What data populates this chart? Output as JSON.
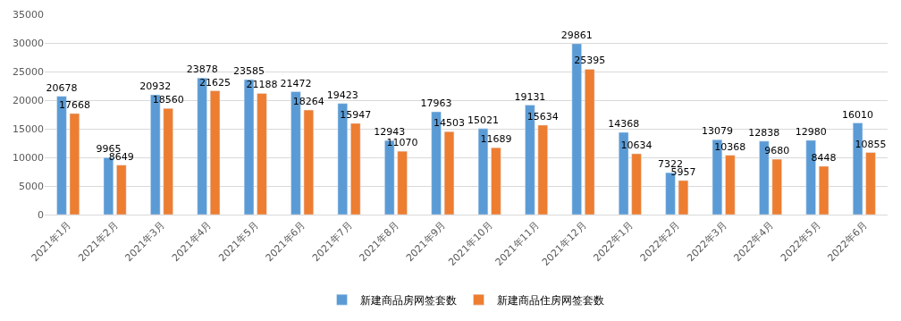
{
  "chart_data": {
    "type": "bar",
    "categories": [
      "2021年1月",
      "2021年2月",
      "2021年3月",
      "2021年4月",
      "2021年5月",
      "2021年6月",
      "2021年7月",
      "2021年8月",
      "2021年9月",
      "2021年10月",
      "2021年11月",
      "2021年12月",
      "2022年1月",
      "2022年2月",
      "2022年3月",
      "2022年4月",
      "2022年5月",
      "2022年6月"
    ],
    "series": [
      {
        "name": "新建商品房网签套数",
        "color": "#5b9bd5",
        "values": [
          20678,
          9965,
          20932,
          23878,
          23585,
          21472,
          19423,
          12943,
          17963,
          15021,
          19131,
          29861,
          14368,
          7322,
          13079,
          12838,
          12980,
          16010
        ]
      },
      {
        "name": "新建商品住房网签套数",
        "color": "#ed7d31",
        "values": [
          17668,
          8649,
          18560,
          21625,
          21188,
          18264,
          15947,
          11070,
          14503,
          11689,
          15634,
          25395,
          10634,
          5957,
          10368,
          9680,
          8448,
          10855
        ]
      }
    ],
    "ylim": [
      0,
      35000
    ],
    "yticks": [
      0,
      5000,
      10000,
      15000,
      20000,
      25000,
      30000,
      35000
    ],
    "grid": "y",
    "legend": "bottom",
    "data_labels": true
  }
}
